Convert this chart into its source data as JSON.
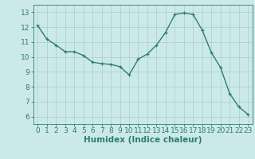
{
  "x": [
    0,
    1,
    2,
    3,
    4,
    5,
    6,
    7,
    8,
    9,
    10,
    11,
    12,
    13,
    14,
    15,
    16,
    17,
    18,
    19,
    20,
    21,
    22,
    23
  ],
  "y": [
    12.1,
    11.2,
    10.8,
    10.35,
    10.35,
    10.1,
    9.65,
    9.55,
    9.5,
    9.35,
    8.8,
    9.85,
    10.2,
    10.8,
    11.65,
    12.85,
    12.95,
    12.85,
    11.8,
    10.3,
    9.3,
    7.55,
    6.65,
    6.15
  ],
  "line_color": "#2d7d6e",
  "marker": "+",
  "marker_size": 3,
  "line_width": 1.0,
  "xlabel": "Humidex (Indice chaleur)",
  "xlim": [
    -0.5,
    23.5
  ],
  "ylim": [
    5.5,
    13.5
  ],
  "yticks": [
    6,
    7,
    8,
    9,
    10,
    11,
    12,
    13
  ],
  "xticks": [
    0,
    1,
    2,
    3,
    4,
    5,
    6,
    7,
    8,
    9,
    10,
    11,
    12,
    13,
    14,
    15,
    16,
    17,
    18,
    19,
    20,
    21,
    22,
    23
  ],
  "bg_color": "#cce9e9",
  "grid_color": "#aacccc",
  "axes_color": "#2d7d6e",
  "tick_fontsize": 6.5,
  "xlabel_fontsize": 7.5
}
